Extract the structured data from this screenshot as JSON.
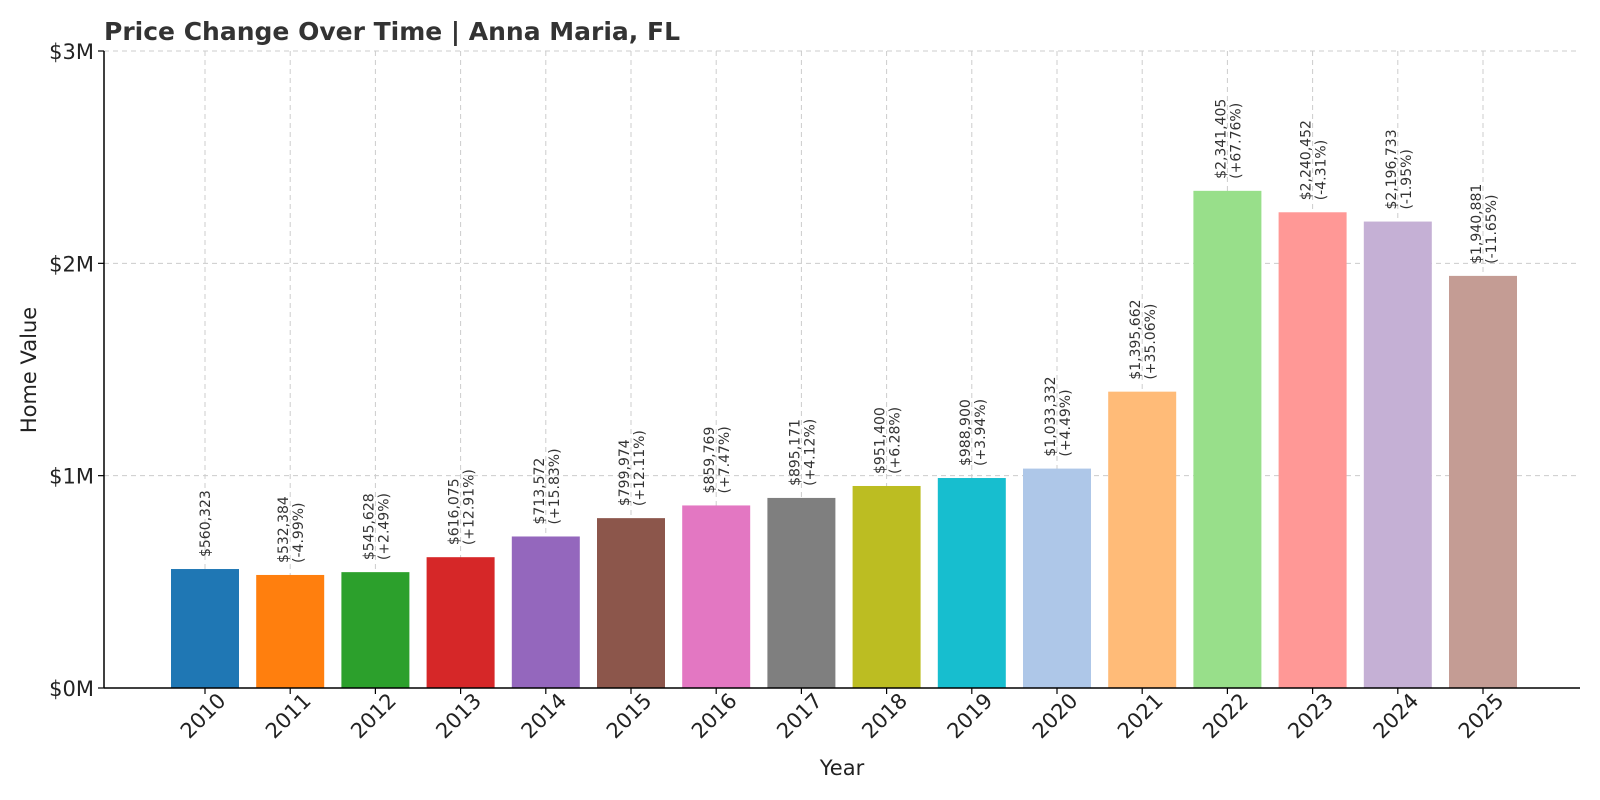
{
  "chart_data": {
    "type": "bar",
    "title": "Price Change Over Time | Anna Maria, FL",
    "xlabel": "Year",
    "ylabel": "Home Value",
    "ylim": [
      0,
      3000000
    ],
    "yticks": [
      {
        "value": 0,
        "label": "$0M"
      },
      {
        "value": 1000000,
        "label": "$1M"
      },
      {
        "value": 2000000,
        "label": "$2M"
      },
      {
        "value": 3000000,
        "label": "$3M"
      }
    ],
    "grid": true,
    "categories": [
      "2010",
      "2011",
      "2012",
      "2013",
      "2014",
      "2015",
      "2016",
      "2017",
      "2018",
      "2019",
      "2020",
      "2021",
      "2022",
      "2023",
      "2024",
      "2025"
    ],
    "values": [
      560323,
      532384,
      545628,
      616075,
      713572,
      799974,
      859769,
      895171,
      951400,
      988900,
      1033332,
      1395662,
      2341405,
      2240452,
      2196733,
      1940881
    ],
    "value_labels": [
      "$560,323",
      "$532,384",
      "$545,628",
      "$616,075",
      "$713,572",
      "$799,974",
      "$859,769",
      "$895,171",
      "$951,400",
      "$988,900",
      "$1,033,332",
      "$1,395,662",
      "$2,341,405",
      "$2,240,452",
      "$2,196,733",
      "$1,940,881"
    ],
    "change_labels": [
      "",
      "(-4.99%)",
      "(+2.49%)",
      "(+12.91%)",
      "(+15.83%)",
      "(+12.11%)",
      "(+7.47%)",
      "(+4.12%)",
      "(+6.28%)",
      "(+3.94%)",
      "(+4.49%)",
      "(+35.06%)",
      "(+67.76%)",
      "(-4.31%)",
      "(-1.95%)",
      "(-11.65%)"
    ],
    "colors": [
      "#1f77b4",
      "#ff7f0e",
      "#2ca02c",
      "#d62728",
      "#9467bd",
      "#8c564b",
      "#e377c2",
      "#7f7f7f",
      "#bcbd22",
      "#17becf",
      "#aec7e8",
      "#ffbb78",
      "#98df8a",
      "#ff9896",
      "#c5b0d5",
      "#c49c94"
    ]
  }
}
